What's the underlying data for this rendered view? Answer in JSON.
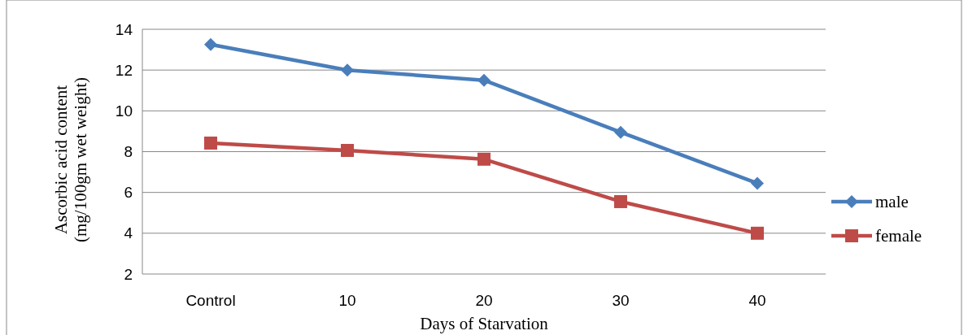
{
  "chart_data": {
    "type": "line",
    "xlabel": "Days of Starvation",
    "ylabel": "Ascorbic acid content\n(mg/100gm wet weight)",
    "categories": [
      "Control",
      "10",
      "20",
      "30",
      "40"
    ],
    "series": [
      {
        "name": "male",
        "color": "#4a7ebb",
        "marker": "diamond",
        "values": [
          13.25,
          12.0,
          11.5,
          8.95,
          6.45
        ]
      },
      {
        "name": "female",
        "color": "#be4b48",
        "marker": "square",
        "values": [
          8.42,
          8.06,
          7.63,
          5.55,
          4.0
        ]
      }
    ],
    "ylim": [
      2,
      14
    ],
    "yticks": [
      2,
      4,
      6,
      8,
      10,
      12,
      14
    ],
    "grid": "y",
    "legend": "right"
  }
}
